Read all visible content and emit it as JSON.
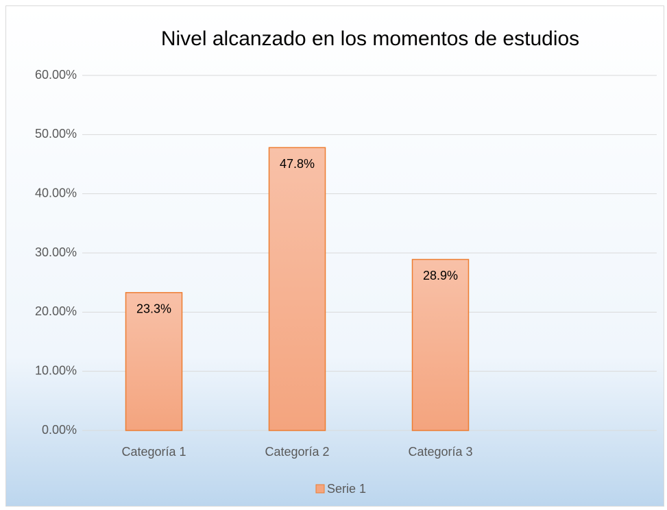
{
  "chart_data": {
    "type": "bar",
    "title": "Nivel alcanzado en los momentos de estudios",
    "categories": [
      "Categoría 1",
      "Categoría 2",
      "Categoría 3"
    ],
    "series": [
      {
        "name": "Serie 1",
        "color": "#f4a57f",
        "values": [
          23.3,
          47.8,
          28.9
        ],
        "value_labels": [
          "23.3%",
          "47.8%",
          "28.9%"
        ]
      }
    ],
    "ylim": [
      0,
      60
    ],
    "yticks": [
      {
        "value": 0,
        "label": "0.00%"
      },
      {
        "value": 10,
        "label": "10.00%"
      },
      {
        "value": 20,
        "label": "20.00%"
      },
      {
        "value": 30,
        "label": "30.00%"
      },
      {
        "value": 40,
        "label": "40.00%"
      },
      {
        "value": 50,
        "label": "50.00%"
      },
      {
        "value": 60,
        "label": "60.00%"
      }
    ],
    "grid": true,
    "legend": "bottom"
  }
}
